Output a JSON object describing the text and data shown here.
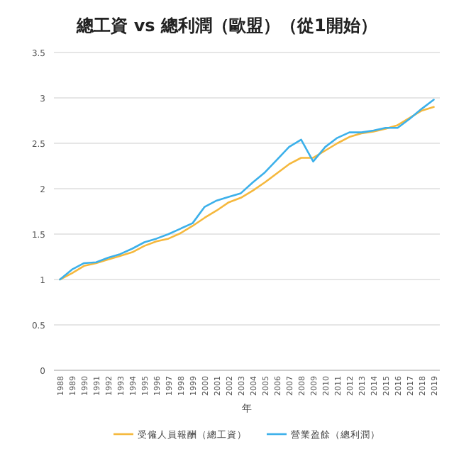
{
  "chart_data": {
    "type": "line",
    "title": "總工資 vs 總利潤（歐盟）（從1開始）",
    "xlabel": "年",
    "categories": [
      "1988",
      "1989",
      "1990",
      "1991",
      "1992",
      "1993",
      "1994",
      "1995",
      "1996",
      "1997",
      "1998",
      "1999",
      "2000",
      "2001",
      "2002",
      "2003",
      "2004",
      "2005",
      "2006",
      "2007",
      "2008",
      "2009",
      "2010",
      "2011",
      "2012",
      "2013",
      "2014",
      "2015",
      "2016",
      "2017",
      "2018",
      "2019"
    ],
    "series": [
      {
        "name": "受僱人員報酬（總工資）",
        "color": "#f5b83d",
        "values": [
          1.0,
          1.07,
          1.15,
          1.18,
          1.22,
          1.26,
          1.3,
          1.37,
          1.42,
          1.45,
          1.51,
          1.59,
          1.68,
          1.76,
          1.85,
          1.9,
          1.98,
          2.07,
          2.17,
          2.27,
          2.34,
          2.34,
          2.42,
          2.5,
          2.57,
          2.61,
          2.63,
          2.66,
          2.7,
          2.78,
          2.86,
          2.9
        ]
      },
      {
        "name": "營業盈餘（總利潤）",
        "color": "#3cb0ea",
        "values": [
          1.0,
          1.11,
          1.18,
          1.19,
          1.24,
          1.28,
          1.34,
          1.41,
          1.45,
          1.5,
          1.56,
          1.62,
          1.8,
          1.87,
          1.91,
          1.95,
          2.07,
          2.18,
          2.32,
          2.46,
          2.54,
          2.3,
          2.46,
          2.56,
          2.62,
          2.62,
          2.64,
          2.67,
          2.67,
          2.77,
          2.88,
          2.98
        ]
      }
    ],
    "ylim": [
      0,
      3.5
    ],
    "yticks": [
      0,
      0.5,
      1,
      1.5,
      2,
      2.5,
      3,
      3.5
    ],
    "grid": "y",
    "legend": "bottom",
    "marker": "none",
    "line_style": "solid"
  }
}
